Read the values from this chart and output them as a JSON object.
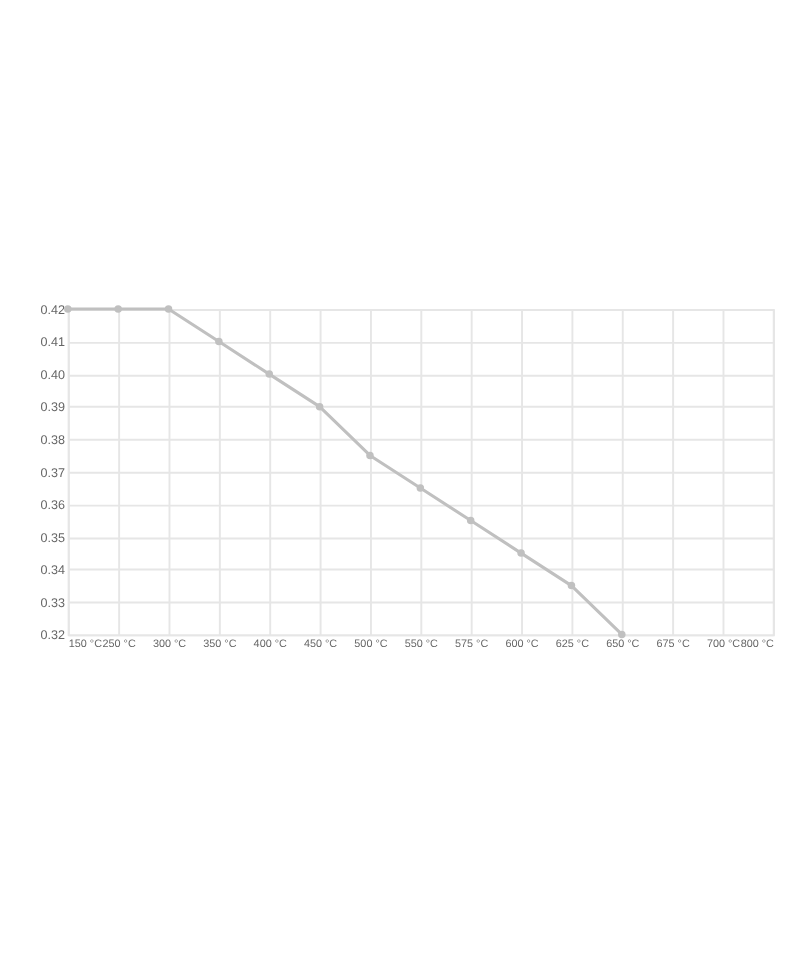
{
  "chart_data": {
    "type": "line",
    "categories": [
      "150 °C",
      "250 °C",
      "300 °C",
      "350 °C",
      "400 °C",
      "450 °C",
      "500 °C",
      "550 °C",
      "575 °C",
      "600 °C",
      "625 °C",
      "650 °C",
      "675 °C",
      "700 °C",
      "800 °C"
    ],
    "series": [
      {
        "color": "#c0c0c0",
        "values": [
          0.42,
          0.42,
          0.42,
          0.41,
          0.4,
          0.39,
          0.375,
          0.365,
          0.355,
          0.345,
          0.335,
          0.32,
          null,
          null,
          null
        ]
      }
    ],
    "ylim": [
      0.32,
      0.42
    ],
    "yticks": [
      {
        "value": 0.32,
        "label": "0.32"
      },
      {
        "value": 0.33,
        "label": "0.33"
      },
      {
        "value": 0.34,
        "label": "0.34"
      },
      {
        "value": 0.35,
        "label": "0.35"
      },
      {
        "value": 0.36,
        "label": "0.36"
      },
      {
        "value": 0.37,
        "label": "0.37"
      },
      {
        "value": 0.38,
        "label": "0.38"
      },
      {
        "value": 0.39,
        "label": "0.39"
      },
      {
        "value": 0.4,
        "label": "0.40"
      },
      {
        "value": 0.41,
        "label": "0.41"
      },
      {
        "value": 0.42,
        "label": "0.42"
      }
    ],
    "grid": true,
    "marker": "circle",
    "line_style": "solid"
  }
}
